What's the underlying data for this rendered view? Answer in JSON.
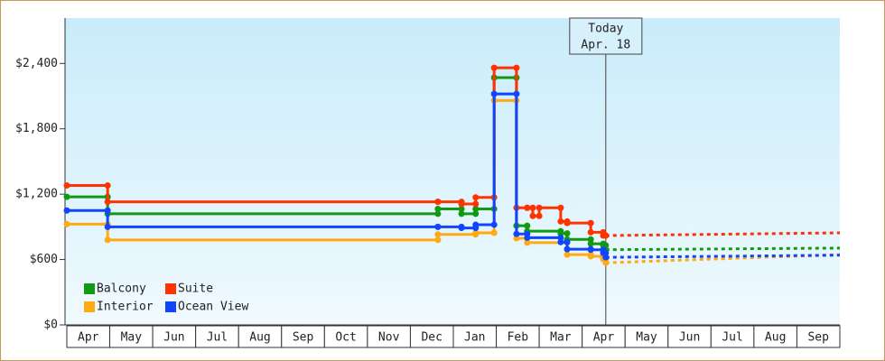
{
  "chart_data": {
    "type": "step-line",
    "categories": [
      "Apr",
      "May",
      "Jun",
      "Jul",
      "Aug",
      "Sep",
      "Oct",
      "Nov",
      "Dec",
      "Jan",
      "Feb",
      "Mar",
      "Apr",
      "May",
      "Jun",
      "Jul",
      "Aug",
      "Sep"
    ],
    "xlim": [
      0,
      18
    ],
    "ylim": [
      0,
      2800
    ],
    "yticks": [
      {
        "value": 0,
        "label": "$0"
      },
      {
        "value": 600,
        "label": "$600"
      },
      {
        "value": 1200,
        "label": "$1,200"
      },
      {
        "value": 1800,
        "label": "$1,800"
      },
      {
        "value": 2400,
        "label": "$2,400"
      }
    ],
    "legend": "lower left",
    "annotation": {
      "x": 12.55,
      "lines": [
        "Today",
        "Apr. 18"
      ]
    },
    "forecast_x": [
      12.55,
      18
    ],
    "series": [
      {
        "name": "Balcony",
        "color": "#119911",
        "x": [
          0,
          0.95,
          8.64,
          9.19,
          9.52,
          9.95,
          10.47,
          10.72,
          11.5,
          11.65,
          12.2,
          12.49,
          12.55
        ],
        "values": [
          1175,
          1020,
          1065,
          1020,
          1065,
          2270,
          910,
          860,
          840,
          785,
          745,
          730,
          690
        ],
        "forecast": [
          690,
          705
        ]
      },
      {
        "name": "Suite",
        "color": "#ff3300",
        "x": [
          0,
          0.95,
          8.64,
          9.19,
          9.52,
          9.95,
          10.47,
          10.72,
          10.85,
          11.0,
          11.5,
          11.65,
          12.2,
          12.49,
          12.55
        ],
        "values": [
          1280,
          1130,
          1130,
          1110,
          1170,
          2360,
          1075,
          1075,
          1000,
          1075,
          950,
          935,
          850,
          820,
          820
        ],
        "forecast": [
          820,
          845
        ]
      },
      {
        "name": "Interior",
        "color": "#ffaa11",
        "x": [
          0,
          0.95,
          8.64,
          9.52,
          9.95,
          10.47,
          10.72,
          11.65,
          12.2,
          12.49,
          12.55
        ],
        "values": [
          925,
          780,
          830,
          845,
          2060,
          795,
          755,
          645,
          630,
          605,
          570
        ],
        "forecast": [
          570,
          645
        ]
      },
      {
        "name": "Ocean View",
        "color": "#1144ff",
        "x": [
          0,
          0.95,
          8.64,
          9.19,
          9.52,
          9.95,
          10.47,
          10.72,
          11.5,
          11.65,
          12.2,
          12.49,
          12.55
        ],
        "values": [
          1050,
          900,
          900,
          890,
          920,
          2120,
          835,
          800,
          760,
          695,
          690,
          660,
          620
        ],
        "forecast": [
          620,
          640
        ]
      }
    ]
  }
}
